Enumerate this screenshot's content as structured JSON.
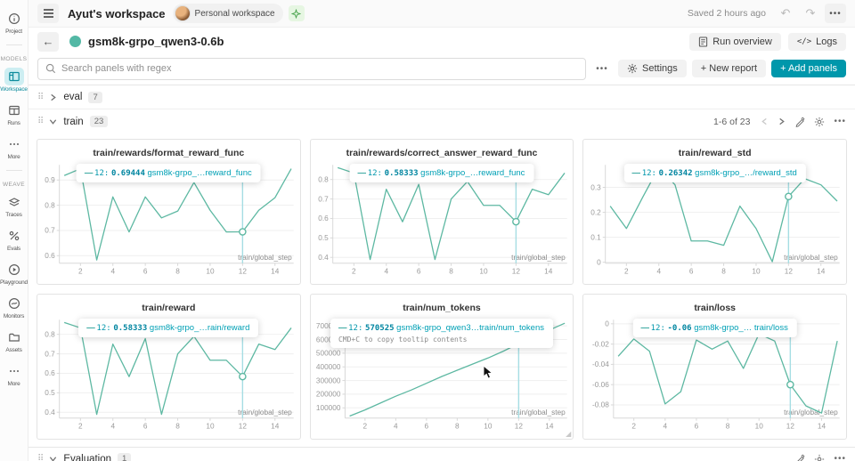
{
  "app": {
    "header": {
      "workspace_title": "Ayut's workspace",
      "workspace_pill": "Personal workspace",
      "saved_status": "Saved 2 hours ago"
    },
    "run_bar": {
      "run_name": "gsm8k-grpo_qwen3-0.6b",
      "run_overview": "Run overview",
      "logs": "Logs",
      "logs_glyph": "</>"
    },
    "toolbar": {
      "search_placeholder": "Search panels with regex",
      "settings": "Settings",
      "new_report": "+ New report",
      "add_panels": "+ Add panels"
    },
    "sections": {
      "eval": {
        "label": "eval",
        "count": "7"
      },
      "train": {
        "label": "train",
        "count": "23",
        "pagination": "1-6 of 23"
      },
      "evaluation": {
        "label": "Evaluation",
        "count": "1"
      }
    }
  },
  "sidebar": {
    "groups": [
      {
        "label": null,
        "items": [
          {
            "id": "project",
            "label": "Project",
            "icon": "info-icon",
            "active": false
          }
        ]
      },
      {
        "label": "MODELS",
        "items": [
          {
            "id": "workspace",
            "label": "Workspace",
            "icon": "workspace-icon",
            "active": true
          },
          {
            "id": "runs",
            "label": "Runs",
            "icon": "runs-icon",
            "active": false
          },
          {
            "id": "models-more",
            "label": "More",
            "icon": "ellipsis-icon",
            "active": false
          }
        ]
      },
      {
        "label": "WEAVE",
        "items": [
          {
            "id": "traces",
            "label": "Traces",
            "icon": "traces-icon",
            "active": false
          },
          {
            "id": "evals",
            "label": "Evals",
            "icon": "evals-icon",
            "active": false
          },
          {
            "id": "playground",
            "label": "Playground",
            "icon": "playground-icon",
            "active": false
          },
          {
            "id": "monitors",
            "label": "Monitors",
            "icon": "monitors-icon",
            "active": false
          },
          {
            "id": "assets",
            "label": "Assets",
            "icon": "assets-icon",
            "active": false
          },
          {
            "id": "weave-more",
            "label": "More",
            "icon": "ellipsis-icon",
            "active": false
          }
        ]
      }
    ]
  },
  "colors": {
    "accent": "#0097ab",
    "line": "#5db8a2",
    "crosshair": "#a5dde3",
    "run_dot": "#53b8a5",
    "grid": "#efefef",
    "axis": "#d8d8d8",
    "tick_text": "#9a9a9a"
  },
  "chart_data": [
    {
      "type": "line",
      "title": "train/rewards/format_reward_func",
      "xlabel": "train/global_step",
      "x": [
        1,
        2,
        3,
        4,
        5,
        6,
        7,
        8,
        9,
        10,
        11,
        12,
        13,
        14,
        15
      ],
      "values": [
        0.918,
        0.945,
        0.583,
        0.833,
        0.694,
        0.833,
        0.75,
        0.777,
        0.89,
        0.78,
        0.694,
        0.69444,
        0.78,
        0.83,
        0.945
      ],
      "xlim": [
        0.7,
        15.15
      ],
      "ylim": [
        0.57,
        0.96
      ],
      "xticks": [
        2,
        4,
        6,
        8,
        10,
        12,
        14
      ],
      "yticks": [
        0.6,
        0.7,
        0.8,
        0.9
      ],
      "ytick_labels": [
        "0.6",
        "0.7",
        "0.8",
        "0.9"
      ],
      "crosshair_x": 12,
      "highlight": {
        "x": 12,
        "y": 0.69444
      },
      "tooltip": {
        "step": "12:",
        "value": "0.69444",
        "series": "gsm8k-grpo_…reward_func",
        "extra": null
      }
    },
    {
      "type": "line",
      "title": "train/rewards/correct_answer_reward_func",
      "xlabel": "train/global_step",
      "x": [
        1,
        2,
        3,
        4,
        5,
        6,
        7,
        8,
        9,
        10,
        11,
        12,
        13,
        14,
        15
      ],
      "values": [
        0.861,
        0.833,
        0.389,
        0.75,
        0.583,
        0.775,
        0.389,
        0.7,
        0.79,
        0.667,
        0.667,
        0.58333,
        0.75,
        0.722,
        0.833
      ],
      "xlim": [
        0.7,
        15.15
      ],
      "ylim": [
        0.37,
        0.875
      ],
      "xticks": [
        2,
        4,
        6,
        8,
        10,
        12,
        14
      ],
      "yticks": [
        0.4,
        0.5,
        0.6,
        0.7,
        0.8
      ],
      "ytick_labels": [
        "0.4",
        "0.5",
        "0.6",
        "0.7",
        "0.8"
      ],
      "crosshair_x": 12,
      "highlight": {
        "x": 12,
        "y": 0.58333
      },
      "tooltip": {
        "step": "12:",
        "value": "0.58333",
        "series": "gsm8k-grpo_…reward_func",
        "extra": null
      }
    },
    {
      "type": "line",
      "title": "train/reward_std",
      "xlabel": "train/global_step",
      "x": [
        1,
        2,
        3,
        4,
        5,
        6,
        7,
        8,
        9,
        10,
        11,
        12,
        13,
        14,
        15
      ],
      "values": [
        0.225,
        0.135,
        0.26,
        0.38,
        0.31,
        0.085,
        0.085,
        0.068,
        0.225,
        0.135,
        0.002,
        0.26342,
        0.335,
        0.31,
        0.245
      ],
      "xlim": [
        0.7,
        15.15
      ],
      "ylim": [
        -0.004,
        0.39
      ],
      "xticks": [
        2,
        4,
        6,
        8,
        10,
        12,
        14
      ],
      "yticks": [
        0,
        0.1,
        0.2,
        0.3
      ],
      "ytick_labels": [
        "0",
        "0.1",
        "0.2",
        "0.3"
      ],
      "crosshair_x": 12,
      "highlight": {
        "x": 12,
        "y": 0.26342
      },
      "tooltip": {
        "step": "12:",
        "value": "0.26342",
        "series": "gsm8k-grpo_…/reward_std",
        "extra": null
      }
    },
    {
      "type": "line",
      "title": "train/reward",
      "xlabel": "train/global_step",
      "x": [
        1,
        2,
        3,
        4,
        5,
        6,
        7,
        8,
        9,
        10,
        11,
        12,
        13,
        14,
        15
      ],
      "values": [
        0.861,
        0.833,
        0.389,
        0.75,
        0.583,
        0.778,
        0.389,
        0.7,
        0.79,
        0.667,
        0.667,
        0.58333,
        0.75,
        0.722,
        0.833
      ],
      "xlim": [
        0.7,
        15.15
      ],
      "ylim": [
        0.37,
        0.875
      ],
      "xticks": [
        2,
        4,
        6,
        8,
        10,
        12,
        14
      ],
      "yticks": [
        0.4,
        0.5,
        0.6,
        0.7,
        0.8
      ],
      "ytick_labels": [
        "0.4",
        "0.5",
        "0.6",
        "0.7",
        "0.8"
      ],
      "crosshair_x": 12,
      "highlight": {
        "x": 12,
        "y": 0.58333
      },
      "tooltip": {
        "step": "12:",
        "value": "0.58333",
        "series": "gsm8k-grpo_…rain/reward",
        "extra": null
      }
    },
    {
      "type": "line",
      "title": "train/num_tokens",
      "xlabel": "train/global_step",
      "x": [
        1,
        2,
        3,
        4,
        5,
        6,
        7,
        8,
        9,
        10,
        11,
        12,
        13,
        14,
        15
      ],
      "values": [
        40000,
        85000,
        135000,
        185000,
        230000,
        280000,
        330000,
        375000,
        420000,
        465000,
        515000,
        570525,
        620000,
        670000,
        720000
      ],
      "xlim": [
        0.7,
        15.15
      ],
      "ylim": [
        25000,
        745000
      ],
      "xticks": [
        2,
        4,
        6,
        8,
        10,
        12,
        14
      ],
      "yticks": [
        100000,
        200000,
        300000,
        400000,
        500000,
        600000,
        700000
      ],
      "ytick_labels": [
        "100000",
        "200000",
        "300000",
        "400000",
        "500000",
        "600000",
        "700000"
      ],
      "crosshair_x": 12,
      "highlight": {
        "x": 12,
        "y": 570525
      },
      "tooltip": {
        "step": "12:",
        "value": "570525",
        "series": "gsm8k-grpo_qwen3…train/num_tokens",
        "extra": "CMD+C to copy tooltip contents"
      }
    },
    {
      "type": "line",
      "title": "train/loss",
      "xlabel": "train/global_step",
      "x": [
        1,
        2,
        3,
        4,
        5,
        6,
        7,
        8,
        9,
        10,
        11,
        12,
        13,
        14,
        15
      ],
      "values": [
        -0.032,
        -0.015,
        -0.027,
        -0.079,
        -0.067,
        -0.016,
        -0.025,
        -0.017,
        -0.044,
        -0.01,
        -0.017,
        -0.06,
        -0.081,
        -0.088,
        -0.017
      ],
      "xlim": [
        0.7,
        15.15
      ],
      "ylim": [
        -0.093,
        0.004
      ],
      "xticks": [
        2,
        4,
        6,
        8,
        10,
        12,
        14
      ],
      "yticks": [
        0,
        -0.02,
        -0.04,
        -0.06,
        -0.08
      ],
      "ytick_labels": [
        "0",
        "-0.02",
        "-0.04",
        "-0.06",
        "-0.08"
      ],
      "crosshair_x": 12,
      "highlight": {
        "x": 12,
        "y": -0.06
      },
      "tooltip": {
        "step": "12:",
        "value": "-0.06",
        "series": "gsm8k-grpo_… train/loss",
        "extra": null
      }
    }
  ]
}
